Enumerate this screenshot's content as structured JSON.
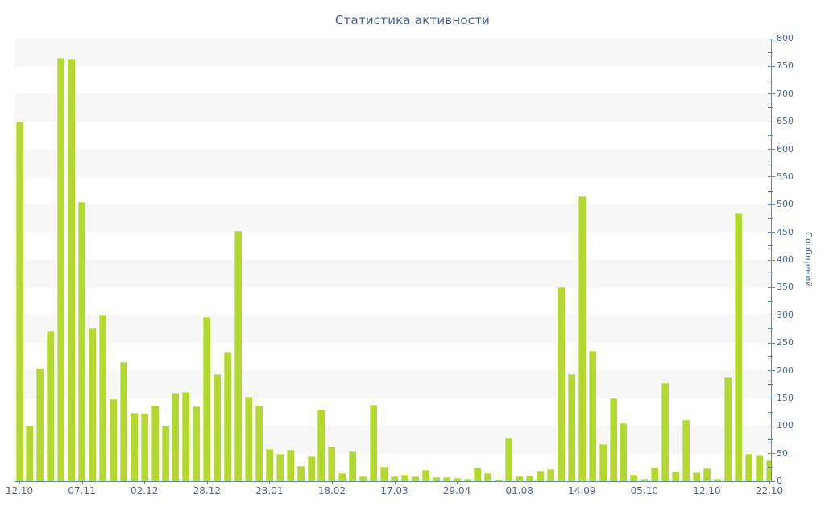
{
  "chart_data": {
    "type": "bar",
    "title": "Статистика активности",
    "ylabel": "Сообщений",
    "xlabel": "",
    "ylim": [
      0,
      800
    ],
    "y_tick_step": 50,
    "y_minor_tick_step": 25,
    "grid": "alternating horizontal bands of 50 units, gray band touches top (750-800)",
    "legend_position": "none",
    "x_tick_labels": [
      "12.10",
      "07.11",
      "02.12",
      "28.12",
      "23.01",
      "18.02",
      "17.03",
      "29.04",
      "01.08",
      "14.09",
      "05.10",
      "12.10",
      "22.10"
    ],
    "x_label_every_n_bars": 6,
    "values": [
      650,
      100,
      203,
      272,
      765,
      763,
      505,
      277,
      300,
      148,
      215,
      124,
      122,
      136,
      100,
      159,
      161,
      135,
      296,
      193,
      232,
      452,
      152,
      136,
      58,
      50,
      56,
      28,
      45,
      129,
      62,
      14,
      54,
      9,
      138,
      26,
      8,
      12,
      9,
      20,
      7,
      7,
      6,
      4,
      25,
      14,
      3,
      78,
      9,
      10,
      19,
      22,
      351,
      194,
      515,
      235,
      67,
      150,
      104,
      11,
      4,
      25,
      177,
      18,
      111,
      16,
      23,
      5,
      188,
      485,
      49,
      47,
      38
    ],
    "colors": {
      "bar_fill": "#b2d930",
      "bar_edge_highlight": "#cbe76c",
      "band_gray": "#f7f7f7",
      "axis_line": "#6286bd",
      "text_labels": "#4a6792",
      "title_text": "#44639b",
      "background": "#ffffff"
    }
  }
}
